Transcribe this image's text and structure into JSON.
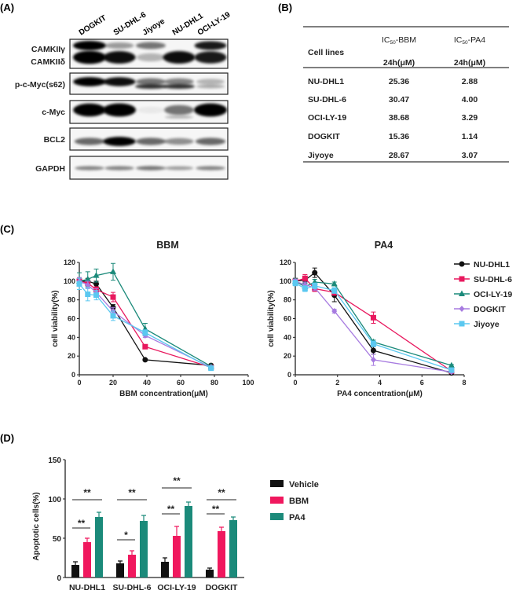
{
  "panels": {
    "a": "(A)",
    "b": "(B)",
    "c": "(C)",
    "d": "(D)"
  },
  "blot": {
    "lanes": [
      "DOGKIT",
      "SU-DHL-6",
      "Jiyoye",
      "NU-DHL1",
      "OCI-LY-19"
    ],
    "rows": [
      "CAMKIIγ",
      "CAMKIIδ",
      "p-c-Myc(s62)",
      "c-Myc",
      "BCL2",
      "GAPDH"
    ]
  },
  "table": {
    "col0": "Cell lines",
    "col1": {
      "prefix": "IC",
      "sub": "50",
      "suffix": "-BBM",
      "unit": "24h(μM)"
    },
    "col2": {
      "prefix": "IC",
      "sub": "50",
      "suffix": "-PA4",
      "unit": "24h(μM)"
    },
    "rows": [
      [
        "NU-DHL1",
        "25.36",
        "2.88"
      ],
      [
        "SU-DHL-6",
        "30.47",
        "4.00"
      ],
      [
        "OCI-LY-19",
        "38.68",
        "3.29"
      ],
      [
        "DOGKIT",
        "15.36",
        "1.14"
      ],
      [
        "Jiyoye",
        "28.67",
        "3.07"
      ]
    ]
  },
  "chart_data": [
    {
      "type": "line",
      "title": "BBM",
      "xlabel": "BBM concentration(μM)",
      "ylabel": "cell viability(%)",
      "xlim": [
        0,
        100
      ],
      "ylim": [
        0,
        120
      ],
      "xticks": [
        "0",
        "20",
        "40",
        "60",
        "80",
        "100"
      ],
      "yticks": [
        "0",
        "20",
        "40",
        "60",
        "80",
        "100",
        "120"
      ],
      "x": [
        0,
        5,
        10,
        20,
        39,
        78
      ],
      "series": [
        {
          "name": "NU-DHL1",
          "color": "#111111",
          "marker": "circle",
          "values": [
            100,
            100,
            97,
            72,
            16,
            10
          ],
          "err": [
            3,
            3,
            3,
            3,
            1,
            1
          ]
        },
        {
          "name": "SU-DHL-6",
          "color": "#e8185e",
          "marker": "square",
          "values": [
            100,
            98,
            91,
            83,
            30,
            8
          ],
          "err": [
            3,
            3,
            3,
            5,
            2,
            1
          ]
        },
        {
          "name": "OCI-LY-19",
          "color": "#1b8a7a",
          "marker": "triangle",
          "values": [
            100,
            102,
            106,
            110,
            49,
            9
          ],
          "err": [
            9,
            8,
            7,
            9,
            6,
            1
          ]
        },
        {
          "name": "DOGKIT",
          "color": "#a77be0",
          "marker": "diamond",
          "values": [
            100,
            96,
            88,
            68,
            42,
            8
          ],
          "err": [
            4,
            4,
            4,
            4,
            2,
            1
          ]
        },
        {
          "name": "Jiyoye",
          "color": "#5bc8f0",
          "marker": "square",
          "values": [
            97,
            86,
            85,
            63,
            45,
            7
          ],
          "err": [
            6,
            7,
            5,
            5,
            3,
            1
          ]
        }
      ],
      "legend": "none"
    },
    {
      "type": "line",
      "title": "PA4",
      "xlabel": "PA4 concentration(μM)",
      "ylabel": "cell viability(%)",
      "xlim": [
        0,
        8
      ],
      "ylim": [
        0,
        120
      ],
      "xticks": [
        "0",
        "2",
        "4",
        "6",
        "8"
      ],
      "yticks": [
        "0",
        "20",
        "40",
        "60",
        "80",
        "100",
        "120"
      ],
      "x": [
        0,
        0.46,
        0.92,
        1.85,
        3.7,
        7.4
      ],
      "series": [
        {
          "name": "NU-DHL1",
          "color": "#111111",
          "marker": "circle",
          "values": [
            100,
            101,
            109,
            85,
            26,
            2
          ],
          "err": [
            3,
            3,
            5,
            7,
            4,
            1
          ]
        },
        {
          "name": "SU-DHL-6",
          "color": "#e8185e",
          "marker": "square",
          "values": [
            100,
            103,
            92,
            88,
            61,
            4
          ],
          "err": [
            3,
            4,
            3,
            3,
            6,
            1
          ]
        },
        {
          "name": "OCI-LY-19",
          "color": "#1b8a7a",
          "marker": "triangle",
          "values": [
            100,
            94,
            99,
            97,
            35,
            10
          ],
          "err": [
            3,
            4,
            3,
            2,
            2,
            1
          ]
        },
        {
          "name": "DOGKIT",
          "color": "#a77be0",
          "marker": "diamond",
          "values": [
            100,
            96,
            93,
            68,
            16,
            3
          ],
          "err": [
            2,
            3,
            3,
            2,
            6,
            1
          ]
        },
        {
          "name": "Jiyoye",
          "color": "#5bc8f0",
          "marker": "square",
          "values": [
            98,
            92,
            95,
            90,
            33,
            5
          ],
          "err": [
            3,
            3,
            3,
            3,
            3,
            1
          ]
        }
      ],
      "legend": "right"
    },
    {
      "type": "bar",
      "xlabel": "",
      "ylabel": "Apoptotic cells(%)",
      "ylim": [
        0,
        150
      ],
      "yticks": [
        "0",
        "50",
        "100",
        "150"
      ],
      "categories": [
        "NU-DHL1",
        "SU-DHL-6",
        "OCI-LY-19",
        "DOGKIT"
      ],
      "series": [
        {
          "name": "Vehicle",
          "color": "#111111",
          "values": [
            16,
            18,
            20,
            10
          ],
          "err": [
            4,
            3,
            5,
            2
          ]
        },
        {
          "name": "BBM",
          "color": "#f0185e",
          "values": [
            45,
            29,
            53,
            59
          ],
          "err": [
            5,
            5,
            12,
            5
          ]
        },
        {
          "name": "PA4",
          "color": "#1b8a7a",
          "values": [
            77,
            72,
            91,
            73
          ],
          "err": [
            6,
            7,
            5,
            4
          ]
        }
      ],
      "significance": [
        {
          "bbm": "**",
          "bbm_level": 63,
          "pa4": "**",
          "pa4_level": 99
        },
        {
          "bbm": "*",
          "bbm_level": 48,
          "pa4": "**",
          "pa4_level": 99
        },
        {
          "bbm": "**",
          "bbm_level": 81,
          "pa4": "**",
          "pa4_level": 114
        },
        {
          "bbm": "**",
          "bbm_level": 81,
          "pa4": "**",
          "pa4_level": 99
        }
      ],
      "legend": "right"
    }
  ]
}
